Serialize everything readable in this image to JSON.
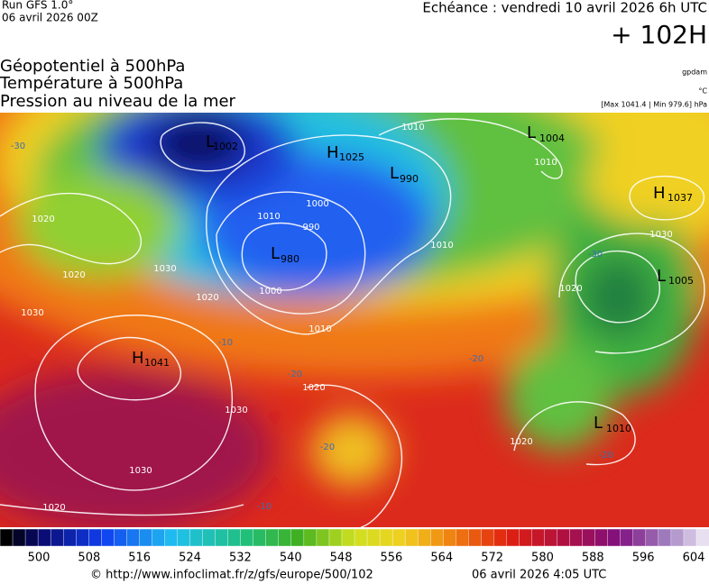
{
  "header": {
    "run": "Run GFS 1.0°",
    "run_date": "06 avril 2026 00Z",
    "echeance": "Echéance : vendredi 10 avril 2026 6h UTC",
    "lead": "+ 102H",
    "source": "gpdam",
    "unit": "°C",
    "range": "[Max 1041.4 | Min 979.6] hPa"
  },
  "titles": [
    "Géopotentiel à 500hPa",
    "Température à 500hPa",
    "Pression au niveau de la mer"
  ],
  "map": {
    "centers": [
      {
        "symbol": "L",
        "value": "1002"
      },
      {
        "symbol": "H",
        "value": "1025"
      },
      {
        "symbol": "L",
        "value": "990"
      },
      {
        "symbol": "L",
        "value": "980"
      },
      {
        "symbol": "L",
        "value": "1004"
      },
      {
        "symbol": "H",
        "value": "1037"
      },
      {
        "symbol": "L",
        "value": "1005"
      },
      {
        "symbol": "H",
        "value": "1041"
      },
      {
        "symbol": "L",
        "value": "1010"
      }
    ],
    "isobar_labels": [
      "1010",
      "1010",
      "1020",
      "1000",
      "990",
      "1010",
      "1000",
      "1010",
      "1020",
      "1030",
      "1020",
      "1030",
      "1020",
      "1030",
      "1010",
      "1020",
      "1030",
      "1030",
      "1020",
      "1020"
    ],
    "temp_labels": [
      "-30",
      "-30",
      "-20",
      "-20",
      "-20",
      "-20",
      "-10",
      "-10"
    ]
  },
  "colorbar": {
    "ticks": [
      500,
      508,
      516,
      524,
      532,
      540,
      548,
      556,
      564,
      572,
      580,
      588,
      596,
      604
    ]
  },
  "footer": {
    "url": "© http://www.infoclimat.fr/z/gfs/europe/500/102",
    "timestamp": "06 avril 2026  4:05 UTC"
  }
}
